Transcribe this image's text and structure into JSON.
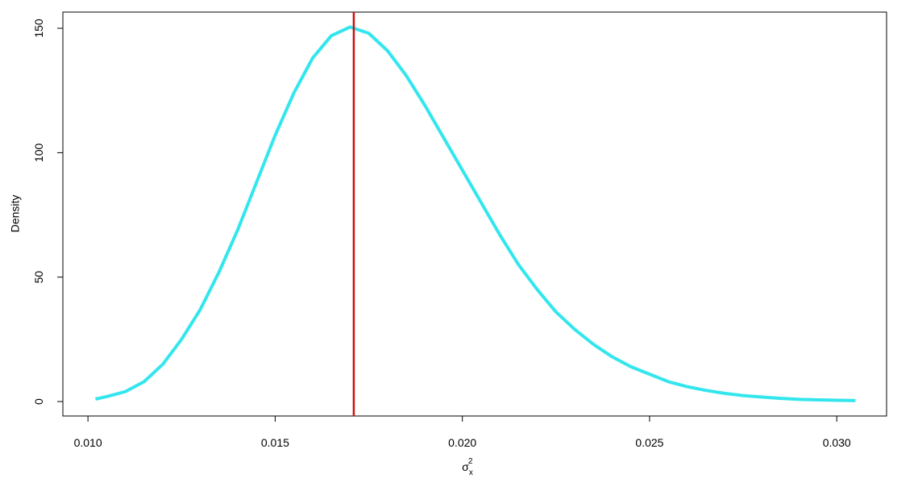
{
  "chart_data": {
    "type": "line",
    "x_label": {
      "base": "σ",
      "sub": "x",
      "sup": "2"
    },
    "y_label": "Density",
    "x": [
      0.0102,
      0.0105,
      0.011,
      0.0115,
      0.012,
      0.0125,
      0.013,
      0.0135,
      0.014,
      0.0145,
      0.015,
      0.0155,
      0.016,
      0.0165,
      0.017,
      0.0175,
      0.018,
      0.0185,
      0.019,
      0.0195,
      0.02,
      0.0205,
      0.021,
      0.0215,
      0.022,
      0.0225,
      0.023,
      0.0235,
      0.024,
      0.0245,
      0.025,
      0.0255,
      0.026,
      0.0265,
      0.027,
      0.0275,
      0.028,
      0.0285,
      0.029,
      0.0295,
      0.03,
      0.0305
    ],
    "series": [
      {
        "color": "#33e6ee",
        "values": [
          1,
          2,
          4,
          8,
          15,
          25,
          37,
          52,
          69,
          88,
          107,
          124,
          138,
          147,
          150.5,
          148,
          141,
          131,
          119,
          106,
          93,
          80,
          67,
          55,
          45,
          36,
          29,
          23,
          18,
          14,
          11,
          8,
          6,
          4.5,
          3.3,
          2.4,
          1.8,
          1.3,
          0.9,
          0.7,
          0.5,
          0.4
        ]
      }
    ],
    "vline": {
      "value": 0.0171,
      "color": "#cc1111"
    },
    "xlim": [
      0.00933,
      0.03133
    ],
    "ylim": [
      -5.8,
      156.5
    ],
    "xticks": [
      {
        "value": 0.01,
        "label": "0.010"
      },
      0.015,
      {
        "value": 0.02,
        "label": "0.020"
      },
      0.025,
      {
        "value": 0.03,
        "label": "0.030"
      }
    ],
    "yticks": [
      0,
      50,
      100,
      150
    ]
  }
}
